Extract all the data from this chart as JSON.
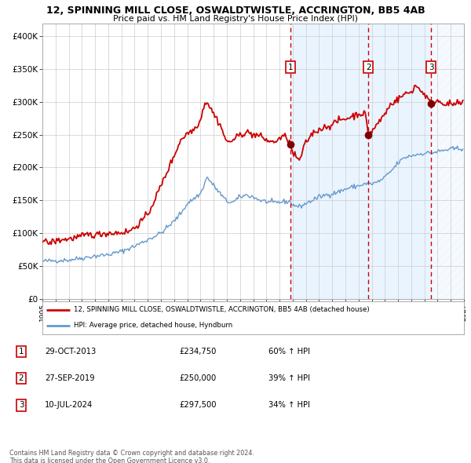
{
  "title": "12, SPINNING MILL CLOSE, OSWALDTWISTLE, ACCRINGTON, BB5 4AB",
  "subtitle": "Price paid vs. HM Land Registry's House Price Index (HPI)",
  "xlim_left": 1995.0,
  "xlim_right": 2027.0,
  "ylim_bottom": 0,
  "ylim_top": 420000,
  "yticks": [
    0,
    50000,
    100000,
    150000,
    200000,
    250000,
    300000,
    350000,
    400000
  ],
  "ytick_labels": [
    "£0",
    "£50K",
    "£100K",
    "£150K",
    "£200K",
    "£250K",
    "£300K",
    "£350K",
    "£400K"
  ],
  "xticks": [
    1995,
    1996,
    1997,
    1998,
    1999,
    2000,
    2001,
    2002,
    2003,
    2004,
    2005,
    2006,
    2007,
    2008,
    2009,
    2010,
    2011,
    2012,
    2013,
    2014,
    2015,
    2016,
    2017,
    2018,
    2019,
    2020,
    2021,
    2022,
    2023,
    2024,
    2025,
    2026,
    2027
  ],
  "sale_color": "#cc0000",
  "hpi_color": "#6699cc",
  "sale_marker_color": "#800000",
  "vline_color": "#cc0000",
  "bg_shade_color": "#ddeeff",
  "legend_box_color": "#cc0000",
  "transactions": [
    {
      "num": 1,
      "date": "29-OCT-2013",
      "year": 2013.83,
      "price": 234750,
      "pct": "60%",
      "direction": "↑"
    },
    {
      "num": 2,
      "date": "27-SEP-2019",
      "year": 2019.74,
      "price": 250000,
      "pct": "39%",
      "direction": "↑"
    },
    {
      "num": 3,
      "date": "10-JUL-2024",
      "year": 2024.52,
      "price": 297500,
      "pct": "34%",
      "direction": "↑"
    }
  ],
  "legend_line1": "12, SPINNING MILL CLOSE, OSWALDTWISTLE, ACCRINGTON, BB5 4AB (detached house)",
  "legend_line2": "HPI: Average price, detached house, Hyndburn",
  "footer1": "Contains HM Land Registry data © Crown copyright and database right 2024.",
  "footer2": "This data is licensed under the Open Government Licence v3.0."
}
